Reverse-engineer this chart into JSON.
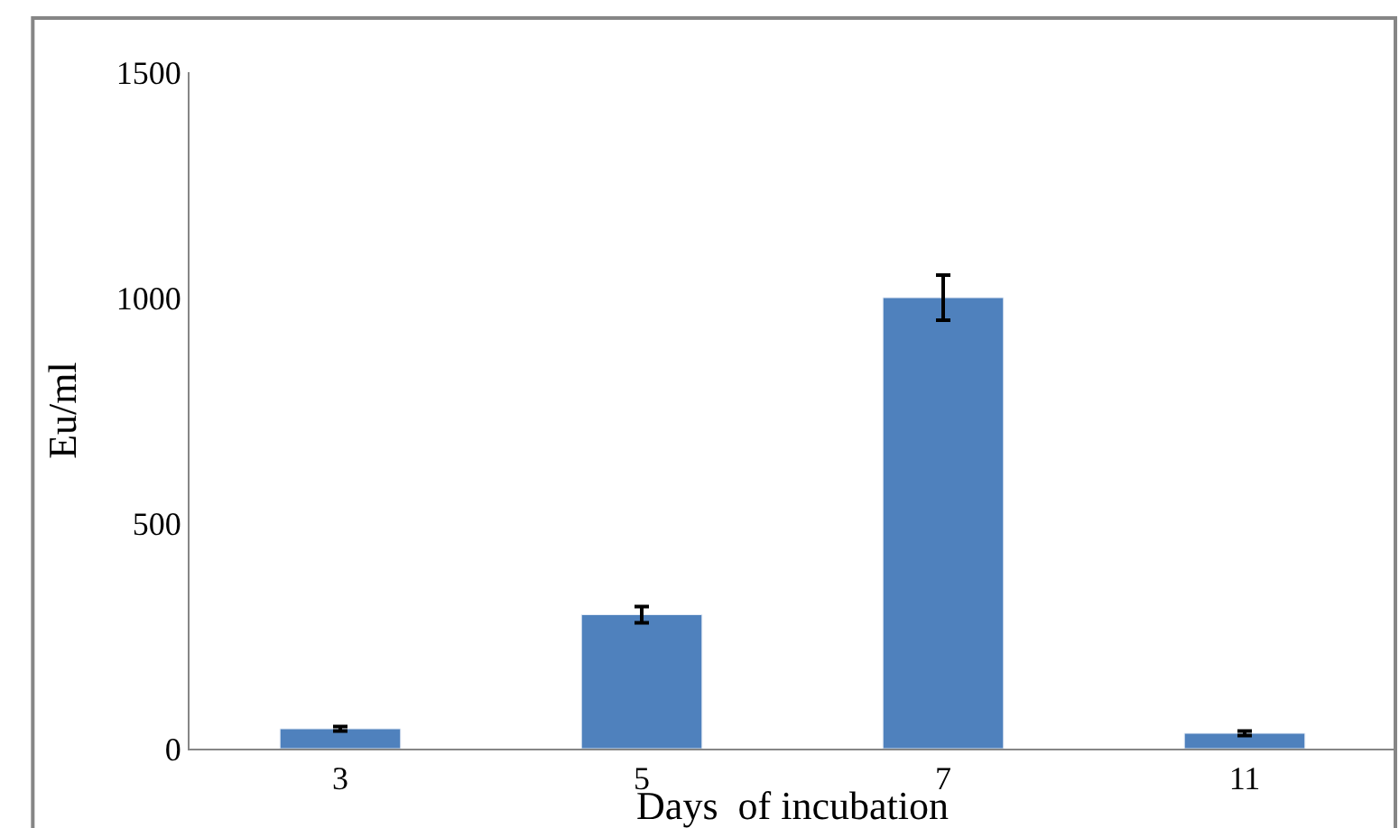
{
  "chart_data": {
    "type": "bar",
    "xlabel": "Days  of incubation",
    "ylabel": "Eu/ml",
    "categories": [
      "3",
      "5",
      "7",
      "11"
    ],
    "values": [
      44,
      297,
      1000,
      34
    ],
    "errors": [
      5,
      18,
      50,
      5
    ],
    "color": "#4f81bd",
    "ylim": [
      0,
      1500
    ],
    "yticks": [
      0,
      500,
      1000,
      1500
    ],
    "grid": false
  }
}
